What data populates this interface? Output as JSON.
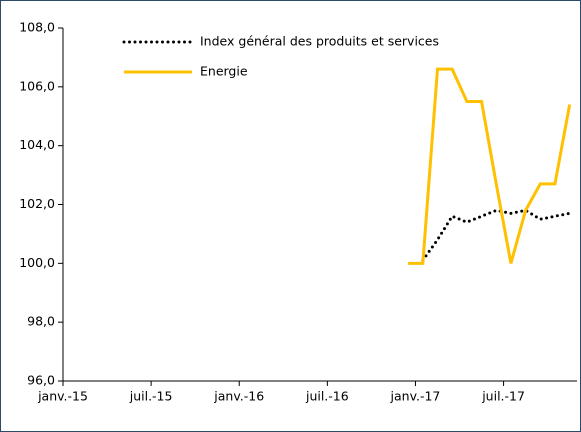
{
  "chart_data": {
    "type": "line",
    "categories": [
      "janv.-15",
      null,
      null,
      null,
      null,
      null,
      "juil.-15",
      null,
      null,
      null,
      null,
      null,
      "janv.-16",
      null,
      null,
      null,
      null,
      null,
      "juil.-16",
      null,
      null,
      null,
      null,
      null,
      "janv.-17",
      null,
      null,
      null,
      null,
      null,
      "juil.-17",
      null,
      null,
      null,
      null
    ],
    "series": [
      {
        "name": "Index général des produits et services",
        "color": "#000000",
        "dash": "dotted",
        "values": [
          null,
          null,
          null,
          null,
          null,
          null,
          null,
          null,
          null,
          null,
          null,
          null,
          null,
          null,
          null,
          null,
          null,
          null,
          null,
          null,
          null,
          null,
          null,
          null,
          100.1,
          100.8,
          101.6,
          101.4,
          101.6,
          101.8,
          101.7,
          101.8,
          101.5,
          101.6,
          101.7
        ]
      },
      {
        "name": "Energie",
        "color": "#ffc000",
        "dash": "solid",
        "values": [
          null,
          null,
          null,
          null,
          null,
          null,
          null,
          null,
          null,
          null,
          null,
          null,
          null,
          null,
          null,
          null,
          null,
          null,
          null,
          null,
          null,
          null,
          null,
          100.0,
          100.0,
          106.6,
          106.6,
          105.5,
          105.5,
          102.7,
          100.0,
          101.8,
          102.7,
          102.7,
          105.4
        ]
      }
    ],
    "ylim": [
      96,
      108
    ],
    "yticks": [
      {
        "value": 96,
        "label": "96,0"
      },
      {
        "value": 98,
        "label": "98,0"
      },
      {
        "value": 100,
        "label": "100,0"
      },
      {
        "value": 102,
        "label": "102,0"
      },
      {
        "value": 104,
        "label": "104,0"
      },
      {
        "value": 106,
        "label": "106,0"
      },
      {
        "value": 108,
        "label": "108,0"
      }
    ],
    "grid": false
  }
}
